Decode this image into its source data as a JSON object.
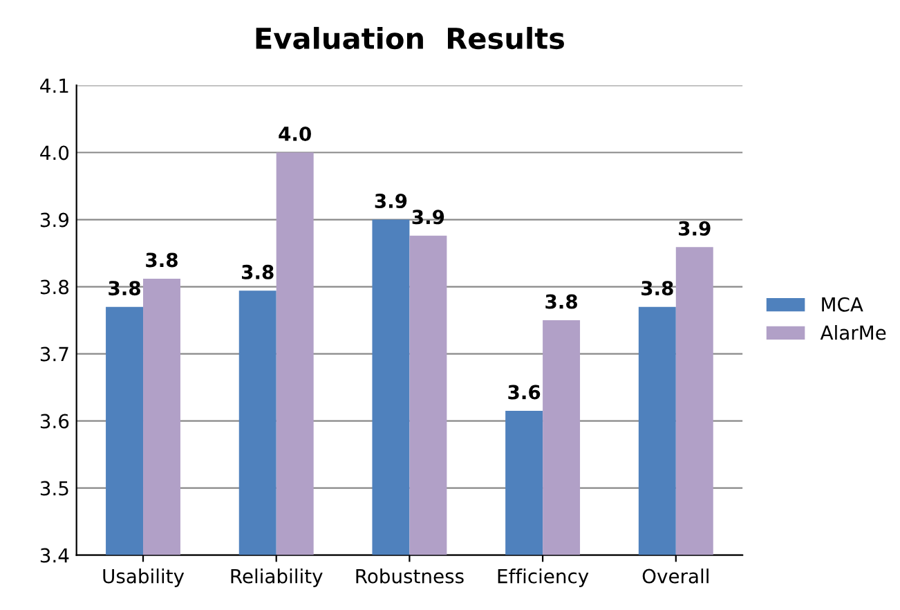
{
  "chart_data": {
    "type": "bar",
    "title": "Evaluation  Results",
    "categories": [
      "Usability",
      "Reliability",
      "Robustness",
      "Efficiency",
      "Overall"
    ],
    "series": [
      {
        "name": "MCA",
        "color": "#4f81bd",
        "values": [
          3.77,
          3.794,
          3.9,
          3.615,
          3.77
        ],
        "value_labels": [
          "3.8",
          "3.8",
          "3.9",
          "3.6",
          "3.8"
        ]
      },
      {
        "name": "AlarMe",
        "color": "#b1a0c7",
        "values": [
          3.812,
          4.0,
          3.876,
          3.75,
          3.859
        ],
        "value_labels": [
          "3.8",
          "4.0",
          "3.9",
          "3.8",
          "3.9"
        ]
      }
    ],
    "ylim": [
      3.4,
      4.1
    ],
    "yticks": [
      {
        "value": 3.4,
        "label": "3.4"
      },
      {
        "value": 3.5,
        "label": "3.5"
      },
      {
        "value": 3.6,
        "label": "3.6"
      },
      {
        "value": 3.7,
        "label": "3.7"
      },
      {
        "value": 3.8,
        "label": "3.8"
      },
      {
        "value": 3.9,
        "label": "3.9"
      },
      {
        "value": 4.0,
        "label": "4.0"
      },
      {
        "value": 4.1,
        "label": "4.1"
      }
    ],
    "grid": "y",
    "legend": "right"
  }
}
